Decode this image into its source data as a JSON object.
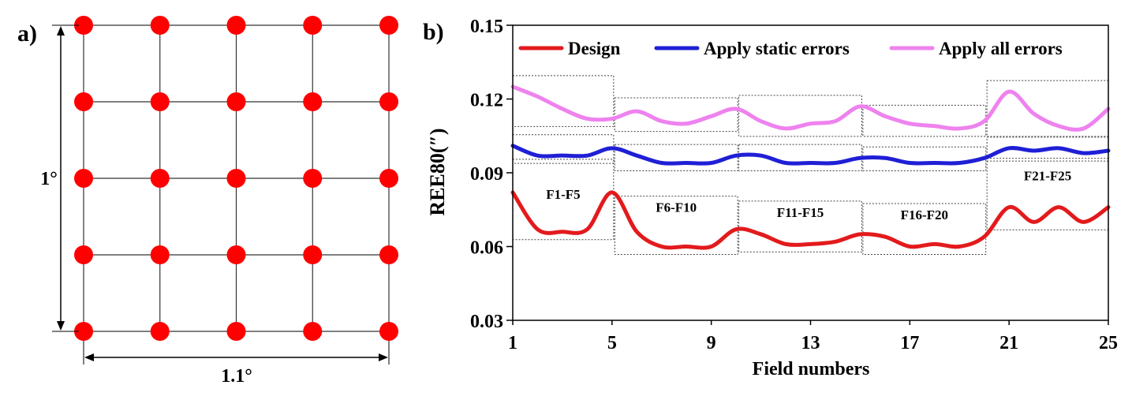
{
  "panel_a": {
    "label": "a)",
    "rows": 5,
    "cols": 5,
    "point_color": "#ff0000",
    "height_label": "1°",
    "width_label": "1.1°"
  },
  "panel_b": {
    "label": "b)"
  },
  "chart_data": {
    "type": "line",
    "xlabel": "Field numbers",
    "ylabel": "REE80(″)",
    "xlim": [
      1,
      25
    ],
    "ylim": [
      0.03,
      0.15
    ],
    "xticks": [
      "1",
      "5",
      "9",
      "13",
      "17",
      "21",
      "25"
    ],
    "xtick_values": [
      1,
      5,
      9,
      13,
      17,
      21,
      25
    ],
    "yticks": [
      "0.03",
      "0.06",
      "0.09",
      "0.12",
      "0.15"
    ],
    "ytick_values": [
      0.03,
      0.06,
      0.09,
      0.12,
      0.15
    ],
    "legend_position": "top",
    "x": [
      1,
      2,
      3,
      4,
      5,
      6,
      7,
      8,
      9,
      10,
      11,
      12,
      13,
      14,
      15,
      16,
      17,
      18,
      19,
      20,
      21,
      22,
      23,
      24,
      25
    ],
    "series": [
      {
        "name": "Design",
        "color": "#e31a1c",
        "values": [
          0.082,
          0.067,
          0.066,
          0.067,
          0.082,
          0.066,
          0.06,
          0.06,
          0.06,
          0.067,
          0.065,
          0.061,
          0.061,
          0.062,
          0.065,
          0.064,
          0.06,
          0.061,
          0.06,
          0.064,
          0.076,
          0.07,
          0.076,
          0.07,
          0.076
        ]
      },
      {
        "name": "Apply static errors",
        "color": "#1f1fd6",
        "values": [
          0.101,
          0.097,
          0.097,
          0.097,
          0.1,
          0.097,
          0.094,
          0.094,
          0.094,
          0.097,
          0.097,
          0.094,
          0.094,
          0.094,
          0.096,
          0.096,
          0.094,
          0.094,
          0.094,
          0.096,
          0.1,
          0.099,
          0.1,
          0.098,
          0.099
        ]
      },
      {
        "name": "Apply all errors",
        "color": "#ee82ee",
        "values": [
          0.125,
          0.121,
          0.116,
          0.112,
          0.112,
          0.115,
          0.111,
          0.11,
          0.113,
          0.116,
          0.111,
          0.108,
          0.11,
          0.111,
          0.117,
          0.113,
          0.11,
          0.109,
          0.108,
          0.111,
          0.123,
          0.114,
          0.109,
          0.108,
          0.116
        ]
      }
    ],
    "groups": [
      {
        "label": "F1-F5",
        "start": 1,
        "end": 5
      },
      {
        "label": "F6-F10",
        "start": 6,
        "end": 10
      },
      {
        "label": "F11-F15",
        "start": 11,
        "end": 15
      },
      {
        "label": "F16-F20",
        "start": 16,
        "end": 20
      },
      {
        "label": "F21-F25",
        "start": 21,
        "end": 25
      }
    ]
  }
}
